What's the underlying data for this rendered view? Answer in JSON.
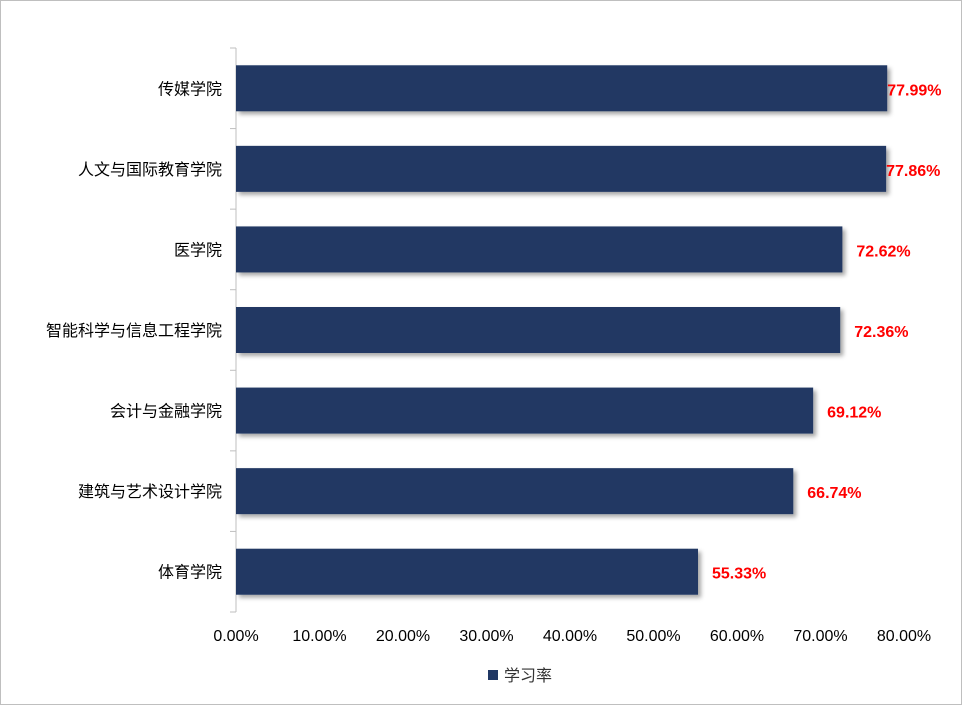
{
  "chart_data": {
    "type": "bar",
    "orientation": "horizontal",
    "categories": [
      "传媒学院",
      "人文与国际教育学院",
      "医学院",
      "智能科学与信息工程学院",
      "会计与金融学院",
      "建筑与艺术设计学院",
      "体育学院"
    ],
    "series": [
      {
        "name": "学习率",
        "values": [
          77.99,
          77.86,
          72.62,
          72.36,
          69.12,
          66.74,
          55.33
        ]
      }
    ],
    "data_labels": [
      "77.99%",
      "77.86%",
      "72.62%",
      "72.36%",
      "69.12%",
      "66.74%",
      "55.33%"
    ],
    "xlim": [
      0,
      80
    ],
    "x_ticks": [
      "0.00%",
      "10.00%",
      "20.00%",
      "30.00%",
      "40.00%",
      "50.00%",
      "60.00%",
      "70.00%",
      "80.00%"
    ],
    "grid": false,
    "legend_position": "bottom",
    "colors": {
      "bar": "#203864",
      "data_label": "#ff0000"
    }
  }
}
